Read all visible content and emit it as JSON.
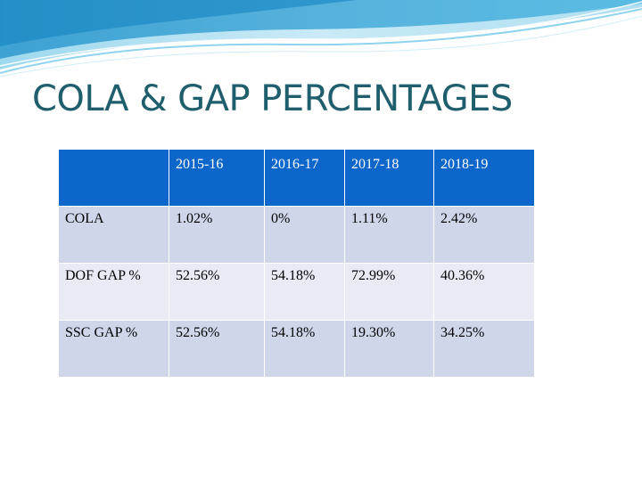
{
  "slide": {
    "title": "COLA &  GAP PERCENTAGES"
  },
  "table": {
    "header": [
      "",
      "2015-16",
      "2016-17",
      "2017-18",
      "2018-19"
    ],
    "rows": [
      [
        "COLA",
        "1.02%",
        "0%",
        "1.11%",
        "2.42%"
      ],
      [
        "DOF GAP %",
        "52.56%",
        "54.18%",
        "72.99%",
        "40.36%"
      ],
      [
        "SSC GAP %",
        "52.56%",
        "54.18%",
        "19.30%",
        "34.25%"
      ]
    ]
  },
  "colors": {
    "title": "#1f5e6c",
    "header_bg": "#0d66c9",
    "row_dark": "#cfd6e9",
    "row_light": "#e8ebf4",
    "wave_blue": "#2aa6d8",
    "wave_light": "#bfe6f5"
  }
}
